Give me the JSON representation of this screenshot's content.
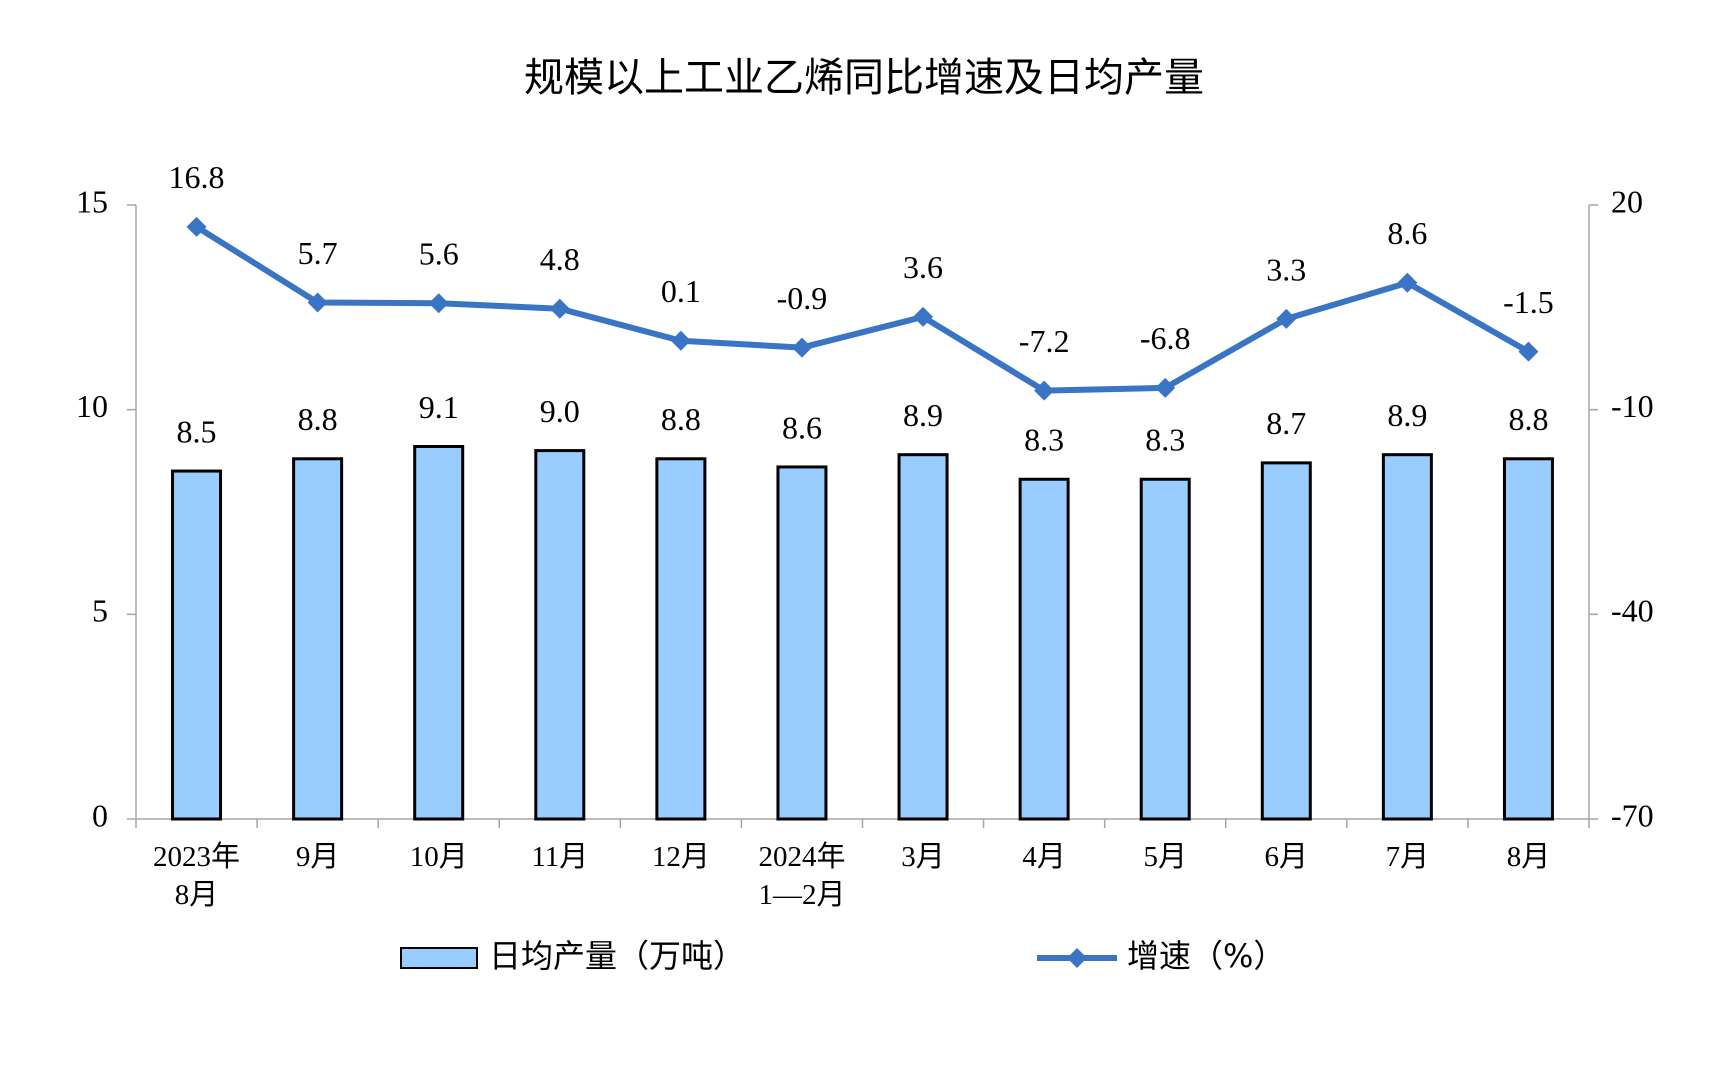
{
  "chart_data": {
    "type": "bar",
    "title": "规模以上工业乙烯同比增速及日均产量",
    "categories": [
      "2023年\n8月",
      "9月",
      "10月",
      "11月",
      "12月",
      "2024年\n1—2月",
      "3月",
      "4月",
      "5月",
      "6月",
      "7月",
      "8月"
    ],
    "series": [
      {
        "name": "日均产量（万吨）",
        "type": "bar",
        "color": "#99ccff",
        "values": [
          8.5,
          8.8,
          9.1,
          9.0,
          8.8,
          8.6,
          8.9,
          8.3,
          8.3,
          8.7,
          8.9,
          8.8
        ],
        "value_labels": [
          "8.5",
          "8.8",
          "9.1",
          "9.0",
          "8.8",
          "8.6",
          "8.9",
          "8.3",
          "8.3",
          "8.7",
          "8.9",
          "8.8"
        ]
      },
      {
        "name": "增速（%）",
        "type": "line",
        "color": "#3a74c4",
        "axis": "y2",
        "values": [
          16.8,
          5.7,
          5.6,
          4.8,
          0.1,
          -0.9,
          3.6,
          -7.2,
          -6.8,
          3.3,
          8.6,
          -1.5
        ]
      }
    ],
    "ylim": [
      0,
      15
    ],
    "yticks": [
      0,
      5,
      10,
      15
    ],
    "y2lim": [
      -70,
      20
    ],
    "y2ticks": [
      -70,
      -40,
      -10,
      20
    ],
    "legend": "bottom"
  }
}
